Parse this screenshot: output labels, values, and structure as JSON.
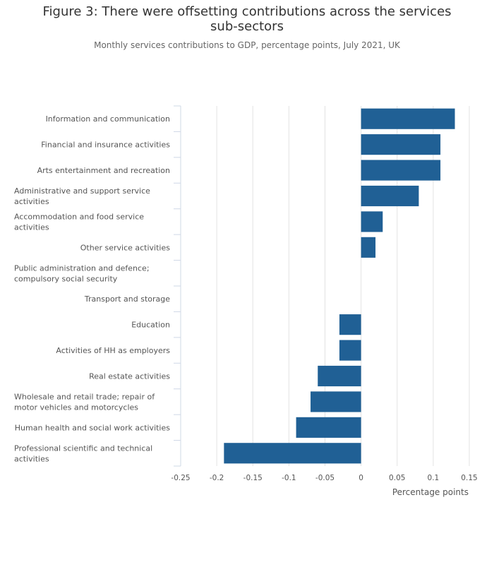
{
  "chart_data": {
    "type": "bar",
    "orientation": "horizontal",
    "title": "Figure 3: There were offsetting contributions across the services sub-sectors",
    "subtitle": "Monthly services contributions to GDP, percentage points, July 2021, UK",
    "xlabel": "Percentage points",
    "ylabel": "",
    "xlim": [
      -0.25,
      0.15
    ],
    "xticks": [
      -0.25,
      -0.2,
      -0.15,
      -0.1,
      -0.05,
      0,
      0.05,
      0.1,
      0.15
    ],
    "xtick_labels": [
      "-0.25",
      "-0.2",
      "-0.15",
      "-0.1",
      "-0.05",
      "0",
      "0.05",
      "0.1",
      "0.15"
    ],
    "grid": true,
    "legend": "none",
    "bar_color": "#206095",
    "categories": [
      "Information and communication",
      "Financial and insurance activities",
      "Arts entertainment and recreation",
      "Administrative and support service activities",
      "Accommodation and food service activities",
      "Other service activities",
      "Public administration and defence; compulsory social security",
      "Transport and storage",
      "Education",
      "Activities of HH as employers",
      "Real estate activities",
      "Wholesale and retail trade; repair of motor vehicles and motorcycles",
      "Human health and social work activities",
      "Professional scientific and technical activities"
    ],
    "values": [
      0.13,
      0.11,
      0.11,
      0.08,
      0.03,
      0.02,
      0,
      0,
      -0.03,
      -0.03,
      -0.06,
      -0.07,
      -0.09,
      -0.19
    ]
  }
}
